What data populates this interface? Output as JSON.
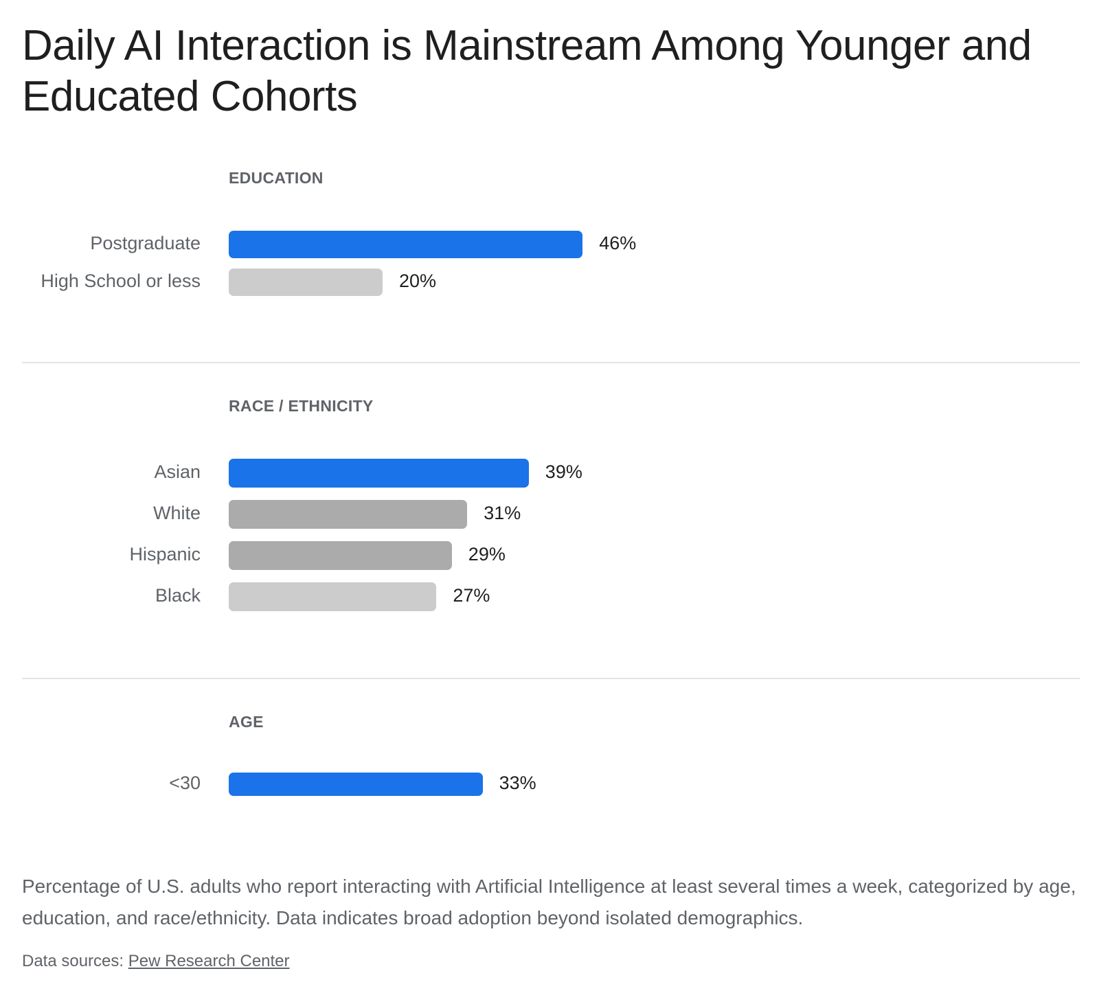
{
  "title": "Daily AI Interaction is Mainstream Among Younger and Educated Cohorts",
  "caption": "Percentage of U.S. adults who report interacting with Artificial Intelligence at least several times a week, categorized by age, education, and race/ethnicity. Data indicates broad adoption beyond isolated demographics.",
  "source": {
    "prefix": "Data sources:",
    "link_text": "Pew Research Center"
  },
  "colors": {
    "highlight": "#1a73e8",
    "mid_gray": "#ababab",
    "light_gray": "#cccccc"
  },
  "chart_data": [
    {
      "type": "bar",
      "orientation": "horizontal",
      "section": "EDUCATION",
      "categories": [
        "Postgraduate",
        "High School or less"
      ],
      "values": [
        46,
        20
      ],
      "value_labels": [
        "46%",
        "20%"
      ],
      "bar_colors": [
        "#1a73e8",
        "#cccccc"
      ],
      "xlim": [
        0,
        100
      ]
    },
    {
      "type": "bar",
      "orientation": "horizontal",
      "section": "RACE / ETHNICITY",
      "categories": [
        "Asian",
        "White",
        "Hispanic",
        "Black"
      ],
      "values": [
        39,
        31,
        29,
        27
      ],
      "value_labels": [
        "39%",
        "31%",
        "29%",
        "27%"
      ],
      "bar_colors": [
        "#1a73e8",
        "#ababab",
        "#ababab",
        "#cccccc"
      ],
      "xlim": [
        0,
        100
      ]
    },
    {
      "type": "bar",
      "orientation": "horizontal",
      "section": "AGE",
      "categories": [
        "<30"
      ],
      "values": [
        33
      ],
      "value_labels": [
        "33%"
      ],
      "bar_colors": [
        "#1a73e8"
      ],
      "xlim": [
        0,
        100
      ]
    }
  ]
}
